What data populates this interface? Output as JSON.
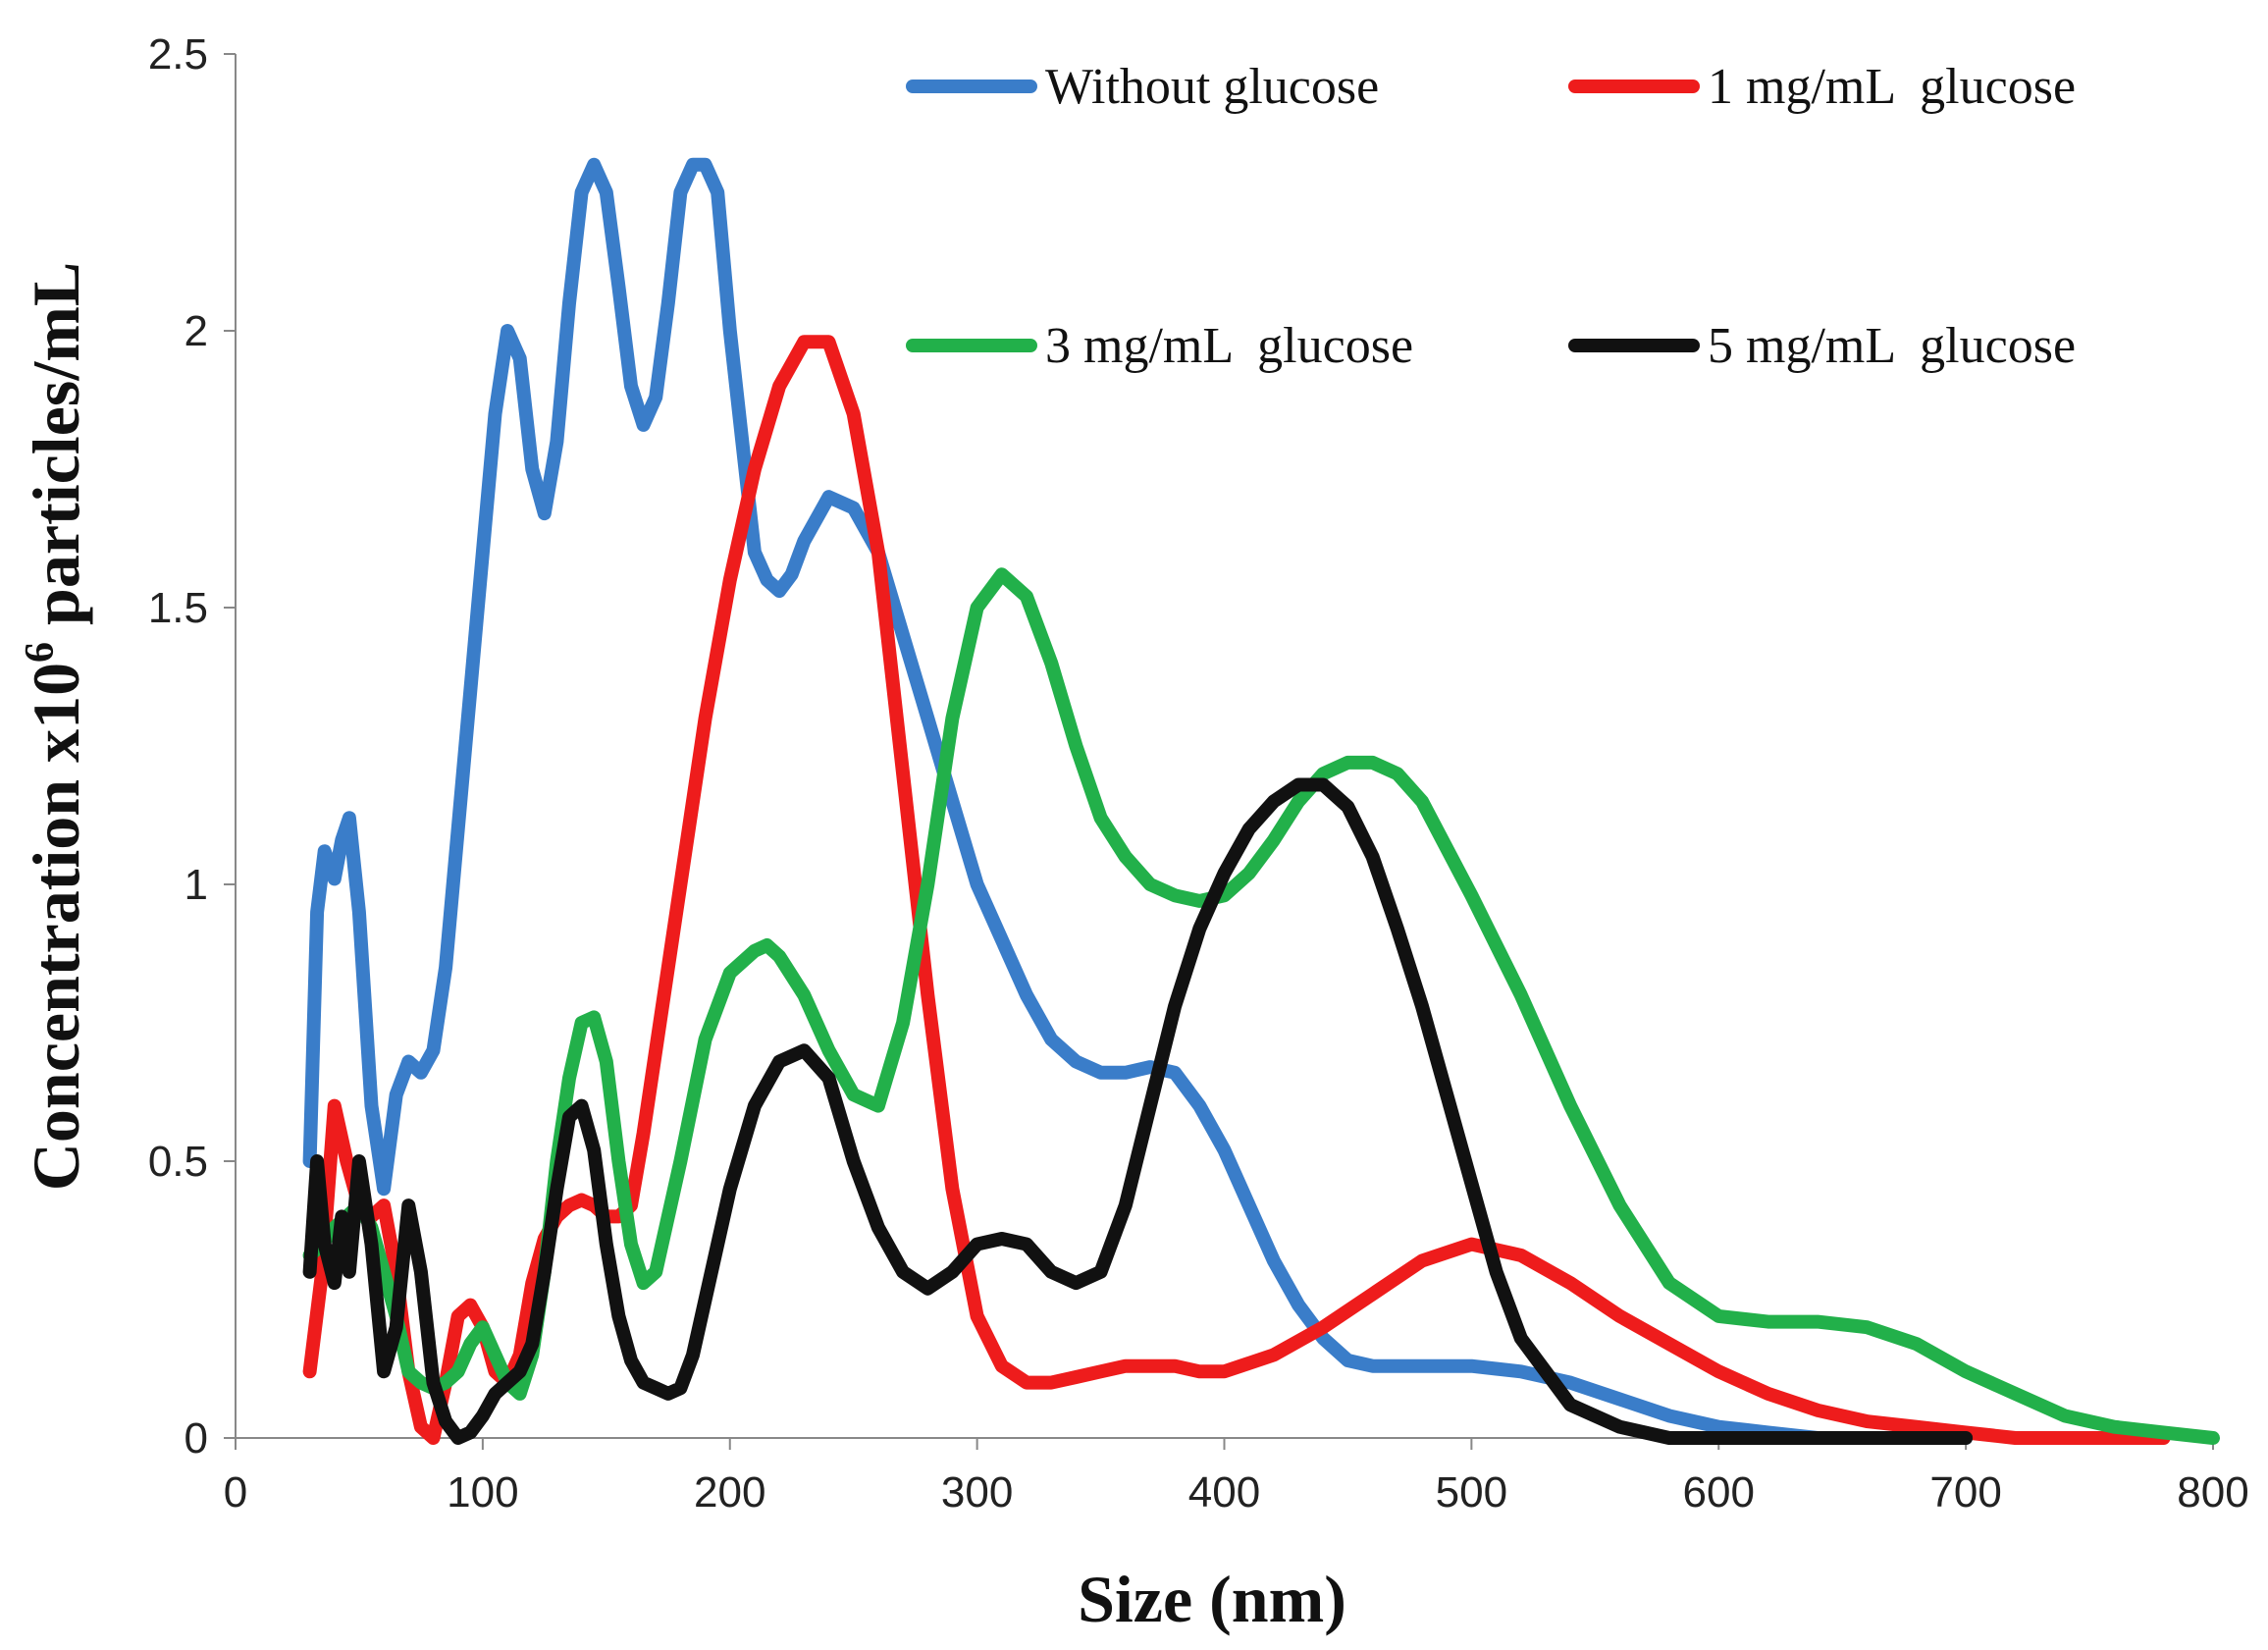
{
  "chart_data": {
    "type": "line",
    "title": "",
    "xlabel": "Size (nm)",
    "ylabel_main": "Concentration x10",
    "ylabel_sup": "6",
    "ylabel_tail": " particles/mL",
    "xlim": [
      0,
      800
    ],
    "ylim": [
      0,
      2.5
    ],
    "xticks": [
      "0",
      "100",
      "200",
      "300",
      "400",
      "500",
      "600",
      "700",
      "800"
    ],
    "yticks": [
      "0",
      "0.5",
      "1",
      "1.5",
      "2",
      "2.5"
    ],
    "grid": false,
    "legend_position": "top",
    "series": [
      {
        "name": "Without glucose",
        "color": "#3a7dc9",
        "x": [
          30,
          33,
          36,
          40,
          43,
          46,
          50,
          55,
          60,
          65,
          70,
          75,
          80,
          85,
          90,
          95,
          100,
          105,
          110,
          115,
          120,
          125,
          130,
          135,
          140,
          145,
          150,
          155,
          160,
          165,
          170,
          175,
          180,
          185,
          190,
          195,
          200,
          205,
          210,
          215,
          220,
          225,
          230,
          240,
          250,
          260,
          270,
          280,
          290,
          300,
          310,
          320,
          330,
          340,
          350,
          360,
          370,
          380,
          390,
          400,
          410,
          420,
          430,
          440,
          450,
          460,
          470,
          480,
          490,
          500,
          520,
          540,
          560,
          580,
          600,
          620,
          640,
          660,
          680,
          700
        ],
        "y": [
          0.5,
          0.95,
          1.06,
          1.01,
          1.08,
          1.12,
          0.95,
          0.6,
          0.45,
          0.62,
          0.68,
          0.66,
          0.7,
          0.85,
          1.1,
          1.35,
          1.6,
          1.85,
          2.0,
          1.95,
          1.75,
          1.67,
          1.8,
          2.05,
          2.25,
          2.3,
          2.25,
          2.08,
          1.9,
          1.83,
          1.88,
          2.05,
          2.25,
          2.3,
          2.3,
          2.25,
          2.0,
          1.8,
          1.6,
          1.55,
          1.53,
          1.56,
          1.62,
          1.7,
          1.68,
          1.6,
          1.45,
          1.3,
          1.15,
          1.0,
          0.9,
          0.8,
          0.72,
          0.68,
          0.66,
          0.66,
          0.67,
          0.66,
          0.6,
          0.52,
          0.42,
          0.32,
          0.24,
          0.18,
          0.14,
          0.13,
          0.13,
          0.13,
          0.13,
          0.13,
          0.12,
          0.1,
          0.07,
          0.04,
          0.02,
          0.01,
          0.0,
          0.0,
          0.0,
          0.0
        ]
      },
      {
        "name": "1 mg/mL  glucose",
        "color": "#ee1c1c",
        "x": [
          30,
          35,
          40,
          45,
          50,
          55,
          60,
          65,
          70,
          75,
          80,
          85,
          90,
          95,
          100,
          105,
          110,
          115,
          120,
          125,
          130,
          135,
          140,
          145,
          150,
          155,
          160,
          165,
          170,
          180,
          190,
          200,
          210,
          220,
          230,
          240,
          250,
          260,
          270,
          280,
          290,
          300,
          310,
          320,
          330,
          340,
          350,
          360,
          370,
          380,
          390,
          400,
          420,
          440,
          460,
          480,
          500,
          520,
          540,
          560,
          580,
          600,
          620,
          640,
          660,
          680,
          700,
          720,
          740,
          760,
          780
        ],
        "y": [
          0.12,
          0.3,
          0.6,
          0.5,
          0.42,
          0.4,
          0.42,
          0.3,
          0.12,
          0.02,
          0.0,
          0.1,
          0.22,
          0.24,
          0.2,
          0.12,
          0.1,
          0.15,
          0.28,
          0.36,
          0.4,
          0.42,
          0.43,
          0.42,
          0.4,
          0.4,
          0.42,
          0.55,
          0.7,
          1.0,
          1.3,
          1.55,
          1.75,
          1.9,
          1.98,
          1.98,
          1.85,
          1.6,
          1.2,
          0.8,
          0.45,
          0.22,
          0.13,
          0.1,
          0.1,
          0.11,
          0.12,
          0.13,
          0.13,
          0.13,
          0.12,
          0.12,
          0.15,
          0.2,
          0.26,
          0.32,
          0.35,
          0.33,
          0.28,
          0.22,
          0.17,
          0.12,
          0.08,
          0.05,
          0.03,
          0.02,
          0.01,
          0.0,
          0.0,
          0.0,
          0.0
        ]
      },
      {
        "name": "3 mg/mL  glucose",
        "color": "#22b04a",
        "x": [
          30,
          35,
          40,
          45,
          50,
          55,
          60,
          65,
          70,
          75,
          80,
          85,
          90,
          95,
          100,
          105,
          110,
          115,
          120,
          125,
          130,
          135,
          140,
          145,
          150,
          155,
          160,
          165,
          170,
          180,
          190,
          200,
          210,
          215,
          220,
          230,
          240,
          250,
          260,
          270,
          280,
          290,
          300,
          310,
          320,
          330,
          340,
          350,
          360,
          370,
          380,
          390,
          400,
          410,
          420,
          430,
          440,
          450,
          460,
          470,
          480,
          500,
          520,
          540,
          560,
          580,
          600,
          620,
          640,
          660,
          680,
          700,
          720,
          740,
          760,
          780,
          800
        ],
        "y": [
          0.33,
          0.35,
          0.38,
          0.4,
          0.42,
          0.38,
          0.3,
          0.22,
          0.12,
          0.1,
          0.09,
          0.1,
          0.12,
          0.17,
          0.2,
          0.15,
          0.1,
          0.08,
          0.15,
          0.3,
          0.5,
          0.65,
          0.75,
          0.76,
          0.68,
          0.5,
          0.35,
          0.28,
          0.3,
          0.5,
          0.72,
          0.84,
          0.88,
          0.89,
          0.87,
          0.8,
          0.7,
          0.62,
          0.6,
          0.75,
          1.0,
          1.3,
          1.5,
          1.56,
          1.52,
          1.4,
          1.25,
          1.12,
          1.05,
          1.0,
          0.98,
          0.97,
          0.98,
          1.02,
          1.08,
          1.15,
          1.2,
          1.22,
          1.22,
          1.2,
          1.15,
          0.98,
          0.8,
          0.6,
          0.42,
          0.28,
          0.22,
          0.21,
          0.21,
          0.2,
          0.17,
          0.12,
          0.08,
          0.04,
          0.02,
          0.01,
          0.0
        ]
      },
      {
        "name": "5 mg/mL  glucose",
        "color": "#111111",
        "x": [
          30,
          33,
          36,
          40,
          43,
          46,
          50,
          55,
          60,
          65,
          70,
          75,
          80,
          85,
          90,
          95,
          100,
          105,
          110,
          115,
          120,
          125,
          130,
          135,
          140,
          145,
          150,
          155,
          160,
          165,
          170,
          175,
          180,
          185,
          190,
          200,
          210,
          220,
          230,
          240,
          250,
          260,
          270,
          280,
          290,
          300,
          310,
          320,
          330,
          340,
          350,
          360,
          370,
          380,
          390,
          400,
          410,
          420,
          430,
          440,
          450,
          460,
          470,
          480,
          490,
          500,
          510,
          520,
          540,
          560,
          580,
          600,
          620,
          640,
          660,
          680,
          700
        ],
        "y": [
          0.3,
          0.5,
          0.35,
          0.28,
          0.4,
          0.3,
          0.5,
          0.35,
          0.12,
          0.2,
          0.42,
          0.3,
          0.1,
          0.03,
          0.0,
          0.01,
          0.04,
          0.08,
          0.1,
          0.12,
          0.17,
          0.3,
          0.45,
          0.58,
          0.6,
          0.52,
          0.35,
          0.22,
          0.14,
          0.1,
          0.09,
          0.08,
          0.09,
          0.15,
          0.25,
          0.45,
          0.6,
          0.68,
          0.7,
          0.65,
          0.5,
          0.38,
          0.3,
          0.27,
          0.3,
          0.35,
          0.36,
          0.35,
          0.3,
          0.28,
          0.3,
          0.42,
          0.6,
          0.78,
          0.92,
          1.02,
          1.1,
          1.15,
          1.18,
          1.18,
          1.14,
          1.05,
          0.92,
          0.78,
          0.62,
          0.46,
          0.3,
          0.18,
          0.06,
          0.02,
          0.0,
          0.0,
          0.0,
          0.0,
          0.0,
          0.0,
          0.0
        ]
      }
    ]
  }
}
